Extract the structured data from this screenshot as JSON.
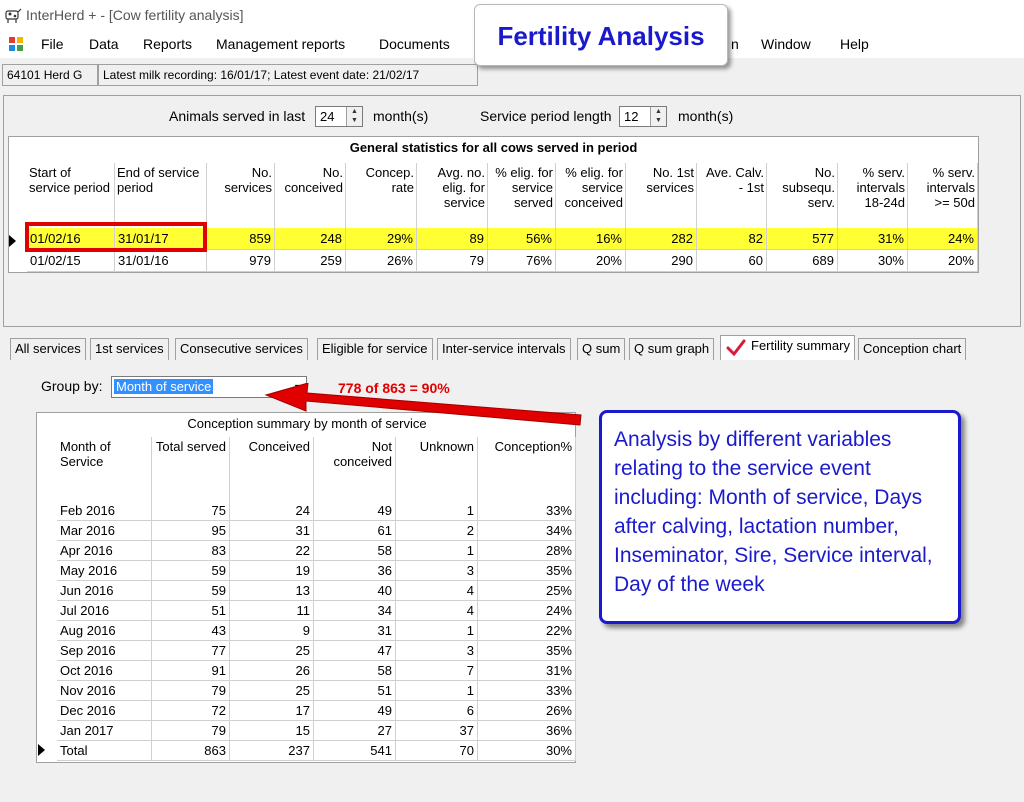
{
  "window": {
    "title": "InterHerd + - [Cow fertility analysis]"
  },
  "menu": [
    "File",
    "Data",
    "Reports",
    "Management reports",
    "Documents",
    "n",
    "Window",
    "Help"
  ],
  "herd_bar": {
    "herd": "64101 Herd G",
    "info": "Latest milk recording: 16/01/17; Latest event date: 21/02/17"
  },
  "callout_title": "Fertility Analysis",
  "filters": {
    "served_label": "Animals served in last",
    "served_value": "24",
    "served_unit": "month(s)",
    "period_label": "Service period length",
    "period_value": "12",
    "period_unit": "month(s)"
  },
  "stats": {
    "caption": "General statistics for all cows served in period",
    "headers": [
      "Start of service period",
      "End of service period",
      "No. services",
      "No. conceived",
      "Concep. rate",
      "Avg. no. elig. for service",
      "% elig. for service served",
      "% elig. for service conceived",
      "No. 1st services",
      "Ave. Calv. - 1st",
      "No. subsequ. serv.",
      "% serv. intervals 18-24d",
      "% serv. intervals >= 50d"
    ],
    "rows": [
      [
        "01/02/16",
        "31/01/17",
        "859",
        "248",
        "29%",
        "89",
        "56%",
        "16%",
        "282",
        "82",
        "577",
        "31%",
        "24%"
      ],
      [
        "01/02/15",
        "31/01/16",
        "979",
        "259",
        "26%",
        "79",
        "76%",
        "20%",
        "290",
        "60",
        "689",
        "30%",
        "20%"
      ]
    ]
  },
  "tabs": [
    "All services",
    "1st services",
    "Consecutive services",
    "Eligible for service",
    "Inter-service intervals",
    "Q sum",
    "Q sum graph",
    "Fertility summary",
    "Conception chart"
  ],
  "active_tab": "Fertility summary",
  "group_by": {
    "label": "Group by:",
    "value": "Month of service"
  },
  "ratio_text": "778 of 863 = 90%",
  "summary": {
    "caption": "Conception summary by month of service",
    "headers": [
      "Month of Service",
      "Total served",
      "Conceived",
      "Not conceived",
      "Unknown",
      "Conception%"
    ],
    "rows": [
      [
        "Feb 2016",
        "75",
        "24",
        "49",
        "1",
        "33%"
      ],
      [
        "Mar 2016",
        "95",
        "31",
        "61",
        "2",
        "34%"
      ],
      [
        "Apr 2016",
        "83",
        "22",
        "58",
        "1",
        "28%"
      ],
      [
        "May 2016",
        "59",
        "19",
        "36",
        "3",
        "35%"
      ],
      [
        "Jun 2016",
        "59",
        "13",
        "40",
        "4",
        "25%"
      ],
      [
        "Jul 2016",
        "51",
        "11",
        "34",
        "4",
        "24%"
      ],
      [
        "Aug 2016",
        "43",
        "9",
        "31",
        "1",
        "22%"
      ],
      [
        "Sep 2016",
        "77",
        "25",
        "47",
        "3",
        "35%"
      ],
      [
        "Oct 2016",
        "91",
        "26",
        "58",
        "7",
        "31%"
      ],
      [
        "Nov 2016",
        "79",
        "25",
        "51",
        "1",
        "33%"
      ],
      [
        "Dec 2016",
        "72",
        "17",
        "49",
        "6",
        "26%"
      ],
      [
        "Jan 2017",
        "79",
        "15",
        "27",
        "37",
        "36%"
      ],
      [
        "Total",
        "863",
        "237",
        "541",
        "70",
        "30%"
      ]
    ]
  },
  "note": "Analysis by different variables relating to the service event including: Month of service, Days after calving, lactation number, Inseminator, Sire, Service interval, Day of the week",
  "colors": {
    "highlight_row": "#ffff33",
    "callout_blue": "#1a1acc",
    "annotation_red": "#e00000"
  }
}
